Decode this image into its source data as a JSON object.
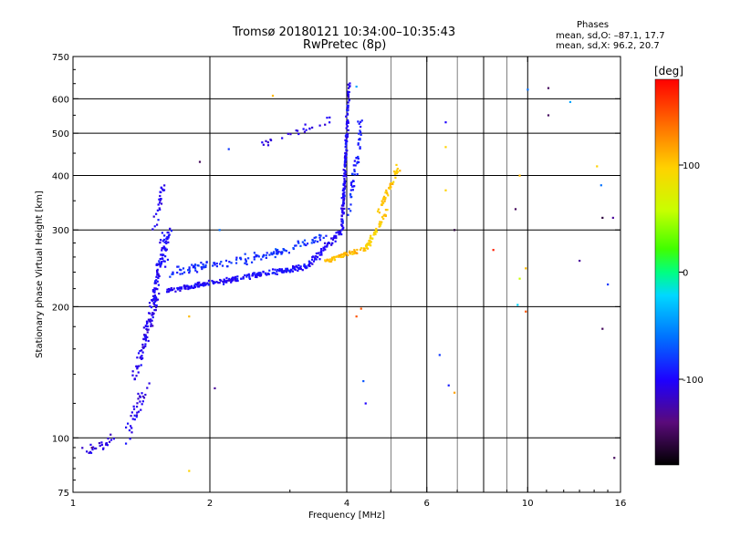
{
  "header": {
    "title_line1": "Tromsø 20180121 10:34:00–10:35:43",
    "title_line2": "RwPretec (8p)"
  },
  "stats": {
    "label": "Phases",
    "line_o": "mean, sd,O:  –87.1, 17.7",
    "line_x": "mean, sd,X:  96.2, 20.7"
  },
  "chart_data": {
    "type": "scatter",
    "title": "Tromsø 20180121 10:34:00–10:35:43",
    "subtitle": "RwPretec (8p)",
    "xlabel": "Frequency [MHz]",
    "ylabel": "Stationary phase Virtual Height [km]",
    "x_scale": "log",
    "y_scale": "log",
    "xlim": [
      1,
      16
    ],
    "ylim": [
      75,
      750
    ],
    "x_ticks": [
      1,
      2,
      4,
      6,
      10,
      16
    ],
    "x_tick_labels": [
      "1",
      "2",
      "4",
      "6",
      "10",
      "16"
    ],
    "y_ticks": [
      75,
      100,
      200,
      300,
      400,
      500,
      600,
      750
    ],
    "y_tick_labels": [
      "75",
      "100",
      "200",
      "300",
      "400",
      "500",
      "600",
      "750"
    ],
    "y_gridlines": [
      100,
      200,
      300,
      400,
      500,
      600
    ],
    "x_gridlines": [
      2,
      4,
      6,
      8,
      10
    ],
    "x_minor_lines": [
      5,
      7,
      9
    ],
    "grid": true,
    "colorbar": {
      "unit": "[deg]",
      "range": [
        -180,
        180
      ],
      "ticks": [
        100,
        0,
        -100
      ],
      "tick_labels": [
        "100",
        "0",
        "-100"
      ]
    },
    "traces": [
      {
        "x0": 1.05,
        "x1": 1.25,
        "y0": 92,
        "y1": 100,
        "phase": -110,
        "n": 25,
        "spread": 0.05
      },
      {
        "x0": 1.3,
        "x1": 1.45,
        "y0": 100,
        "y1": 130,
        "phase": -105,
        "n": 35,
        "spread": 0.06
      },
      {
        "x0": 1.38,
        "x1": 1.52,
        "y0": 140,
        "y1": 210,
        "phase": -105,
        "n": 90,
        "spread": 0.06
      },
      {
        "x0": 1.5,
        "x1": 1.62,
        "y0": 210,
        "y1": 300,
        "phase": -100,
        "n": 90,
        "spread": 0.06
      },
      {
        "x0": 1.5,
        "x1": 1.58,
        "y0": 300,
        "y1": 380,
        "phase": -105,
        "n": 25,
        "spread": 0.04
      },
      {
        "x0": 1.6,
        "x1": 2.3,
        "y0": 218,
        "y1": 232,
        "phase": -100,
        "n": 120,
        "spread": 0.02
      },
      {
        "x0": 2.3,
        "x1": 3.3,
        "y0": 232,
        "y1": 248,
        "phase": -95,
        "n": 110,
        "spread": 0.02
      },
      {
        "x0": 3.3,
        "x1": 3.9,
        "y0": 250,
        "y1": 300,
        "phase": -100,
        "n": 60,
        "spread": 0.03
      },
      {
        "x0": 1.65,
        "x1": 2.6,
        "y0": 240,
        "y1": 262,
        "phase": -85,
        "n": 80,
        "spread": 0.04
      },
      {
        "x0": 2.6,
        "x1": 3.6,
        "y0": 260,
        "y1": 290,
        "phase": -80,
        "n": 60,
        "spread": 0.03
      },
      {
        "x0": 3.9,
        "x1": 4.05,
        "y0": 300,
        "y1": 650,
        "phase": -100,
        "n": 150,
        "spread": 0.02
      },
      {
        "x0": 4.05,
        "x1": 4.3,
        "y0": 330,
        "y1": 530,
        "phase": -90,
        "n": 50,
        "spread": 0.04
      },
      {
        "x0": 2.6,
        "x1": 3.7,
        "y0": 470,
        "y1": 540,
        "phase": -105,
        "n": 25,
        "spread": 0.03
      },
      {
        "x0": 3.6,
        "x1": 4.4,
        "y0": 255,
        "y1": 272,
        "phase": 110,
        "n": 60,
        "spread": 0.02
      },
      {
        "x0": 4.4,
        "x1": 4.9,
        "y0": 272,
        "y1": 330,
        "phase": 100,
        "n": 50,
        "spread": 0.03
      },
      {
        "x0": 4.7,
        "x1": 5.2,
        "y0": 330,
        "y1": 420,
        "phase": 105,
        "n": 45,
        "spread": 0.03
      }
    ],
    "scattered_points": [
      {
        "x": 2.75,
        "y": 610,
        "phase": 110
      },
      {
        "x": 4.2,
        "y": 640,
        "phase": -40
      },
      {
        "x": 6.6,
        "y": 530,
        "phase": -100
      },
      {
        "x": 6.6,
        "y": 465,
        "phase": 100
      },
      {
        "x": 6.6,
        "y": 370,
        "phase": 100
      },
      {
        "x": 6.9,
        "y": 300,
        "phase": -160
      },
      {
        "x": 6.4,
        "y": 155,
        "phase": -80
      },
      {
        "x": 6.7,
        "y": 132,
        "phase": -90
      },
      {
        "x": 6.9,
        "y": 127,
        "phase": 120
      },
      {
        "x": 8.4,
        "y": 270,
        "phase": 170
      },
      {
        "x": 9.4,
        "y": 335,
        "phase": -150
      },
      {
        "x": 9.6,
        "y": 400,
        "phase": 110
      },
      {
        "x": 9.9,
        "y": 245,
        "phase": 110
      },
      {
        "x": 9.6,
        "y": 232,
        "phase": 60
      },
      {
        "x": 9.5,
        "y": 202,
        "phase": -20
      },
      {
        "x": 9.9,
        "y": 195,
        "phase": 150
      },
      {
        "x": 10.0,
        "y": 630,
        "phase": -60
      },
      {
        "x": 11.1,
        "y": 635,
        "phase": -150
      },
      {
        "x": 11.1,
        "y": 550,
        "phase": -150
      },
      {
        "x": 12.4,
        "y": 590,
        "phase": -40
      },
      {
        "x": 13.0,
        "y": 255,
        "phase": -130
      },
      {
        "x": 14.5,
        "y": 380,
        "phase": -60
      },
      {
        "x": 14.6,
        "y": 320,
        "phase": -160
      },
      {
        "x": 14.6,
        "y": 178,
        "phase": -150
      },
      {
        "x": 15.0,
        "y": 225,
        "phase": -80
      },
      {
        "x": 15.4,
        "y": 320,
        "phase": -130
      },
      {
        "x": 15.5,
        "y": 90,
        "phase": -150
      },
      {
        "x": 14.2,
        "y": 420,
        "phase": 100
      },
      {
        "x": 4.3,
        "y": 198,
        "phase": 150
      },
      {
        "x": 4.2,
        "y": 190,
        "phase": 150
      },
      {
        "x": 4.35,
        "y": 135,
        "phase": -70
      },
      {
        "x": 4.4,
        "y": 120,
        "phase": -100
      },
      {
        "x": 1.8,
        "y": 84,
        "phase": 100
      },
      {
        "x": 1.8,
        "y": 190,
        "phase": 110
      },
      {
        "x": 2.1,
        "y": 300,
        "phase": -60
      },
      {
        "x": 1.9,
        "y": 430,
        "phase": -150
      },
      {
        "x": 2.2,
        "y": 460,
        "phase": -80
      },
      {
        "x": 2.05,
        "y": 130,
        "phase": -130
      },
      {
        "x": 1.1,
        "y": 95,
        "phase": -140
      }
    ]
  }
}
